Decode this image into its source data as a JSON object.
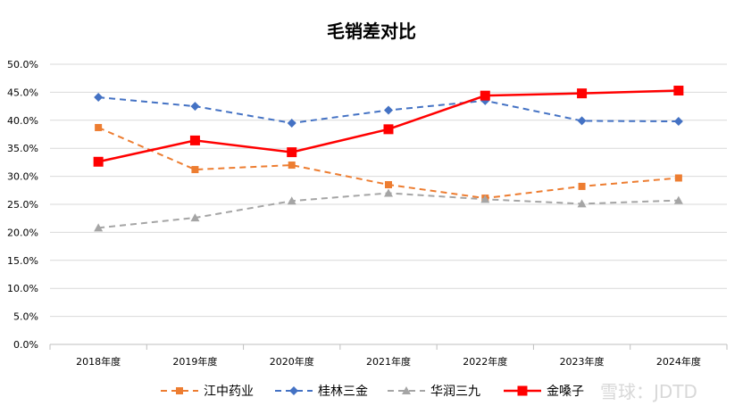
{
  "chart_data": {
    "type": "line",
    "title": "毛销差对比",
    "xlabel": "",
    "ylabel": "",
    "categories": [
      "2018年度",
      "2019年度",
      "2020年度",
      "2021年度",
      "2022年度",
      "2023年度",
      "2024年度"
    ],
    "ylim": [
      0,
      0.5
    ],
    "yticks": [
      "0.0%",
      "5.0%",
      "10.0%",
      "15.0%",
      "20.0%",
      "25.0%",
      "30.0%",
      "35.0%",
      "40.0%",
      "45.0%",
      "50.0%"
    ],
    "grid": true,
    "legend_position": "bottom",
    "series": [
      {
        "name": "江中药业",
        "color": "#ED7D31",
        "dash": true,
        "marker": "square",
        "values": [
          0.387,
          0.312,
          0.32,
          0.285,
          0.261,
          0.282,
          0.297
        ]
      },
      {
        "name": "桂林三金",
        "color": "#4472C4",
        "dash": true,
        "marker": "diamond",
        "values": [
          0.441,
          0.425,
          0.395,
          0.418,
          0.435,
          0.399,
          0.398
        ]
      },
      {
        "name": "华润三九",
        "color": "#A5A5A5",
        "dash": true,
        "marker": "triangle",
        "values": [
          0.208,
          0.226,
          0.256,
          0.27,
          0.259,
          0.251,
          0.257
        ]
      },
      {
        "name": "金嗓子",
        "color": "#FF0000",
        "dash": false,
        "marker": "square",
        "values": [
          0.326,
          0.364,
          0.343,
          0.384,
          0.444,
          0.448,
          0.453
        ]
      }
    ]
  },
  "watermark": "雪球：JDTD"
}
